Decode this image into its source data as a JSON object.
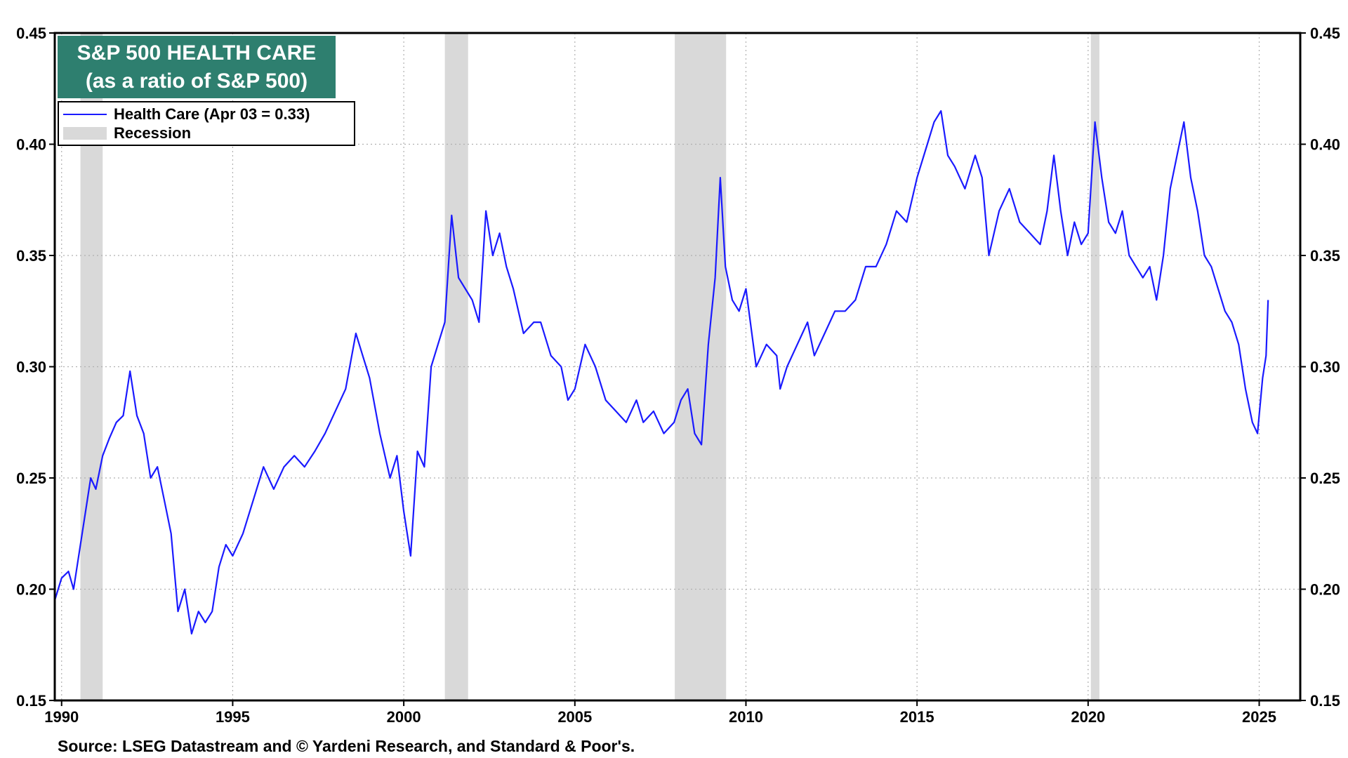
{
  "title_line1": "S&P 500 HEALTH CARE",
  "title_line2": "(as a ratio of S&P 500)",
  "legend": {
    "series_label": "Health Care (Apr 03 = 0.33)",
    "recession_label": "Recession"
  },
  "source": "Source: LSEG Datastream and © Yardeni Research, and Standard & Poor's.",
  "colors": {
    "series": "#1a1aff",
    "recession": "#d9d9d9",
    "title_bg": "#2e7f6f",
    "grid": "#b0b0b0"
  },
  "chart_data": {
    "type": "line",
    "title": "S&P 500 HEALTH CARE (as a ratio of S&P 500)",
    "xlim": [
      1989.8,
      2026.2
    ],
    "ylim": [
      0.15,
      0.45
    ],
    "x_ticks": [
      1990,
      1995,
      2000,
      2005,
      2010,
      2015,
      2020,
      2025
    ],
    "x_tick_labels": [
      "1990",
      "1995",
      "2000",
      "2005",
      "2010",
      "2015",
      "2020",
      "2025"
    ],
    "y_ticks": [
      0.15,
      0.2,
      0.25,
      0.3,
      0.35,
      0.4,
      0.45
    ],
    "y_tick_labels": [
      "0.15",
      "0.20",
      "0.25",
      "0.30",
      "0.35",
      "0.40",
      "0.45"
    ],
    "y_axis_sides": [
      "left",
      "right"
    ],
    "grid": "dotted",
    "legend_position": "top-left",
    "recessions": [
      [
        1990.55,
        1991.2
      ],
      [
        2001.2,
        2001.88
      ],
      [
        2007.92,
        2009.42
      ],
      [
        2020.08,
        2020.33
      ]
    ],
    "series": [
      {
        "name": "Health Care",
        "last_value_label": "Apr 03 = 0.33",
        "x": [
          1989.8,
          1990.0,
          1990.2,
          1990.35,
          1990.5,
          1990.7,
          1990.85,
          1991.0,
          1991.2,
          1991.4,
          1991.6,
          1991.8,
          1992.0,
          1992.2,
          1992.4,
          1992.6,
          1992.8,
          1993.0,
          1993.2,
          1993.4,
          1993.6,
          1993.8,
          1994.0,
          1994.2,
          1994.4,
          1994.6,
          1994.8,
          1995.0,
          1995.3,
          1995.6,
          1995.9,
          1996.2,
          1996.5,
          1996.8,
          1997.1,
          1997.4,
          1997.7,
          1998.0,
          1998.3,
          1998.6,
          1998.8,
          1999.0,
          1999.3,
          1999.6,
          1999.8,
          2000.0,
          2000.2,
          2000.4,
          2000.6,
          2000.8,
          2001.0,
          2001.2,
          2001.4,
          2001.6,
          2001.8,
          2002.0,
          2002.2,
          2002.4,
          2002.6,
          2002.8,
          2003.0,
          2003.2,
          2003.5,
          2003.8,
          2004.0,
          2004.3,
          2004.6,
          2004.8,
          2005.0,
          2005.3,
          2005.6,
          2005.9,
          2006.2,
          2006.5,
          2006.8,
          2007.0,
          2007.3,
          2007.6,
          2007.9,
          2008.1,
          2008.3,
          2008.5,
          2008.7,
          2008.9,
          2009.1,
          2009.25,
          2009.4,
          2009.6,
          2009.8,
          2010.0,
          2010.3,
          2010.6,
          2010.9,
          2011.0,
          2011.2,
          2011.5,
          2011.8,
          2012.0,
          2012.3,
          2012.6,
          2012.9,
          2013.2,
          2013.5,
          2013.8,
          2014.1,
          2014.4,
          2014.7,
          2015.0,
          2015.3,
          2015.5,
          2015.7,
          2015.9,
          2016.1,
          2016.4,
          2016.7,
          2016.9,
          2017.1,
          2017.4,
          2017.7,
          2018.0,
          2018.3,
          2018.6,
          2018.8,
          2019.0,
          2019.2,
          2019.4,
          2019.6,
          2019.8,
          2020.0,
          2020.2,
          2020.4,
          2020.6,
          2020.8,
          2021.0,
          2021.2,
          2021.4,
          2021.6,
          2021.8,
          2022.0,
          2022.2,
          2022.4,
          2022.6,
          2022.8,
          2023.0,
          2023.2,
          2023.4,
          2023.6,
          2023.8,
          2024.0,
          2024.2,
          2024.4,
          2024.6,
          2024.8,
          2024.95,
          2025.1,
          2025.2,
          2025.26
        ],
        "values": [
          0.195,
          0.205,
          0.208,
          0.2,
          0.215,
          0.235,
          0.25,
          0.245,
          0.26,
          0.268,
          0.275,
          0.278,
          0.298,
          0.278,
          0.27,
          0.25,
          0.255,
          0.24,
          0.225,
          0.19,
          0.2,
          0.18,
          0.19,
          0.185,
          0.19,
          0.21,
          0.22,
          0.215,
          0.225,
          0.24,
          0.255,
          0.245,
          0.255,
          0.26,
          0.255,
          0.262,
          0.27,
          0.28,
          0.29,
          0.315,
          0.305,
          0.295,
          0.27,
          0.25,
          0.26,
          0.235,
          0.215,
          0.262,
          0.255,
          0.3,
          0.31,
          0.32,
          0.368,
          0.34,
          0.335,
          0.33,
          0.32,
          0.37,
          0.35,
          0.36,
          0.345,
          0.335,
          0.315,
          0.32,
          0.32,
          0.305,
          0.3,
          0.285,
          0.29,
          0.31,
          0.3,
          0.285,
          0.28,
          0.275,
          0.285,
          0.275,
          0.28,
          0.27,
          0.275,
          0.285,
          0.29,
          0.27,
          0.265,
          0.31,
          0.34,
          0.385,
          0.345,
          0.33,
          0.325,
          0.335,
          0.3,
          0.31,
          0.305,
          0.29,
          0.3,
          0.31,
          0.32,
          0.305,
          0.315,
          0.325,
          0.325,
          0.33,
          0.345,
          0.345,
          0.355,
          0.37,
          0.365,
          0.385,
          0.4,
          0.41,
          0.415,
          0.395,
          0.39,
          0.38,
          0.395,
          0.385,
          0.35,
          0.37,
          0.38,
          0.365,
          0.36,
          0.355,
          0.37,
          0.395,
          0.37,
          0.35,
          0.365,
          0.355,
          0.36,
          0.41,
          0.385,
          0.365,
          0.36,
          0.37,
          0.35,
          0.345,
          0.34,
          0.345,
          0.33,
          0.35,
          0.38,
          0.395,
          0.41,
          0.385,
          0.37,
          0.35,
          0.345,
          0.335,
          0.325,
          0.32,
          0.31,
          0.29,
          0.275,
          0.27,
          0.295,
          0.305,
          0.33
        ]
      }
    ]
  }
}
